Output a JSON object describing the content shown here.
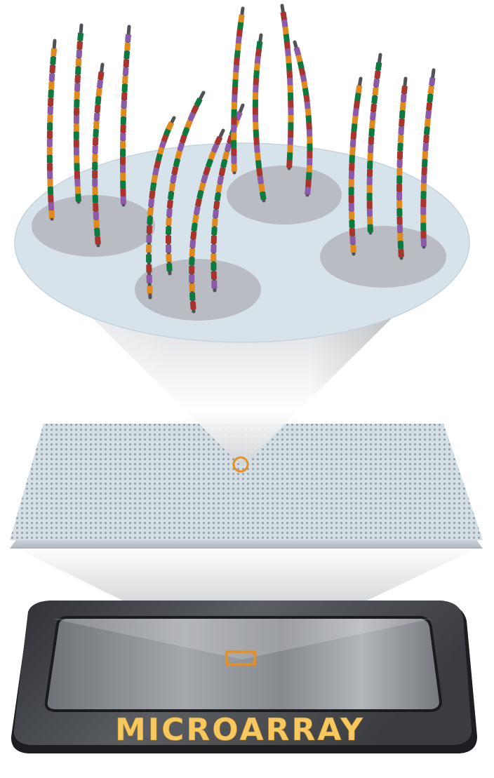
{
  "chip": {
    "label": "MICROARRAY",
    "label_color": "#f6c85f"
  },
  "colors": {
    "nucleotides": [
      "#0b7a3e",
      "#e08a1e",
      "#8b5aa8",
      "#a8342c"
    ],
    "strand_backbone": "#4f5358",
    "highlight": "#e8901e",
    "disc_fill": "#d7e3ea",
    "spot_fill": "#b9bcc2",
    "grid_plate": "#c8d6df",
    "grid_dot": "#9aa3ab"
  },
  "icons": {
    "strand": "dna-strand-icon",
    "spot_marker": "circle-marker-icon",
    "chip_marker": "rectangle-marker-icon"
  }
}
